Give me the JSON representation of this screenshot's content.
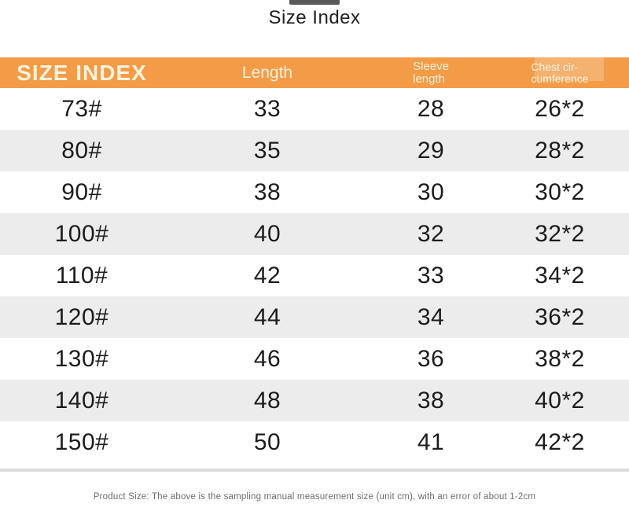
{
  "page": {
    "title": "Size Index"
  },
  "table": {
    "headers": [
      {
        "line1": "SIZE INDEX"
      },
      {
        "line1": "Length"
      },
      {
        "line1": "Sleeve",
        "line2": "length"
      },
      {
        "line1": "Chest cir-",
        "line2": "cumference"
      }
    ],
    "rows": [
      {
        "size": "73#",
        "length": "33",
        "sleeve": "28",
        "chest": "26*2"
      },
      {
        "size": "80#",
        "length": "35",
        "sleeve": "29",
        "chest": "28*2"
      },
      {
        "size": "90#",
        "length": "38",
        "sleeve": "30",
        "chest": "30*2"
      },
      {
        "size": "100#",
        "length": "40",
        "sleeve": "32",
        "chest": "32*2"
      },
      {
        "size": "110#",
        "length": "42",
        "sleeve": "33",
        "chest": "34*2"
      },
      {
        "size": "120#",
        "length": "44",
        "sleeve": "34",
        "chest": "36*2"
      },
      {
        "size": "130#",
        "length": "46",
        "sleeve": "36",
        "chest": "38*2"
      },
      {
        "size": "140#",
        "length": "48",
        "sleeve": "38",
        "chest": "40*2"
      },
      {
        "size": "150#",
        "length": "50",
        "sleeve": "41",
        "chest": "42*2"
      }
    ]
  },
  "footer": {
    "note": "Product Size: The above is the sampling manual measurement size (unit cm), with an error of about 1-2cm"
  },
  "colors": {
    "header_bg": "#F39B47",
    "header_text": "#FAF2DC",
    "row_alt_bg": "#ECECEC",
    "body_text": "#1C1C1C",
    "note_text": "#6B6B6B",
    "divider": "#DCDCDC"
  },
  "chart_data": {
    "type": "table",
    "title": "Size Index",
    "columns": [
      "SIZE INDEX",
      "Length",
      "Sleeve length",
      "Chest circumference"
    ],
    "rows": [
      [
        "73#",
        "33",
        "28",
        "26*2"
      ],
      [
        "80#",
        "35",
        "29",
        "28*2"
      ],
      [
        "90#",
        "38",
        "30",
        "30*2"
      ],
      [
        "100#",
        "40",
        "32",
        "32*2"
      ],
      [
        "110#",
        "42",
        "33",
        "34*2"
      ],
      [
        "120#",
        "44",
        "34",
        "36*2"
      ],
      [
        "130#",
        "46",
        "36",
        "38*2"
      ],
      [
        "140#",
        "48",
        "38",
        "40*2"
      ],
      [
        "150#",
        "50",
        "41",
        "42*2"
      ]
    ],
    "note": "Product Size: The above is the sampling manual measurement size (unit cm), with an error of about 1-2cm",
    "units": "cm"
  }
}
